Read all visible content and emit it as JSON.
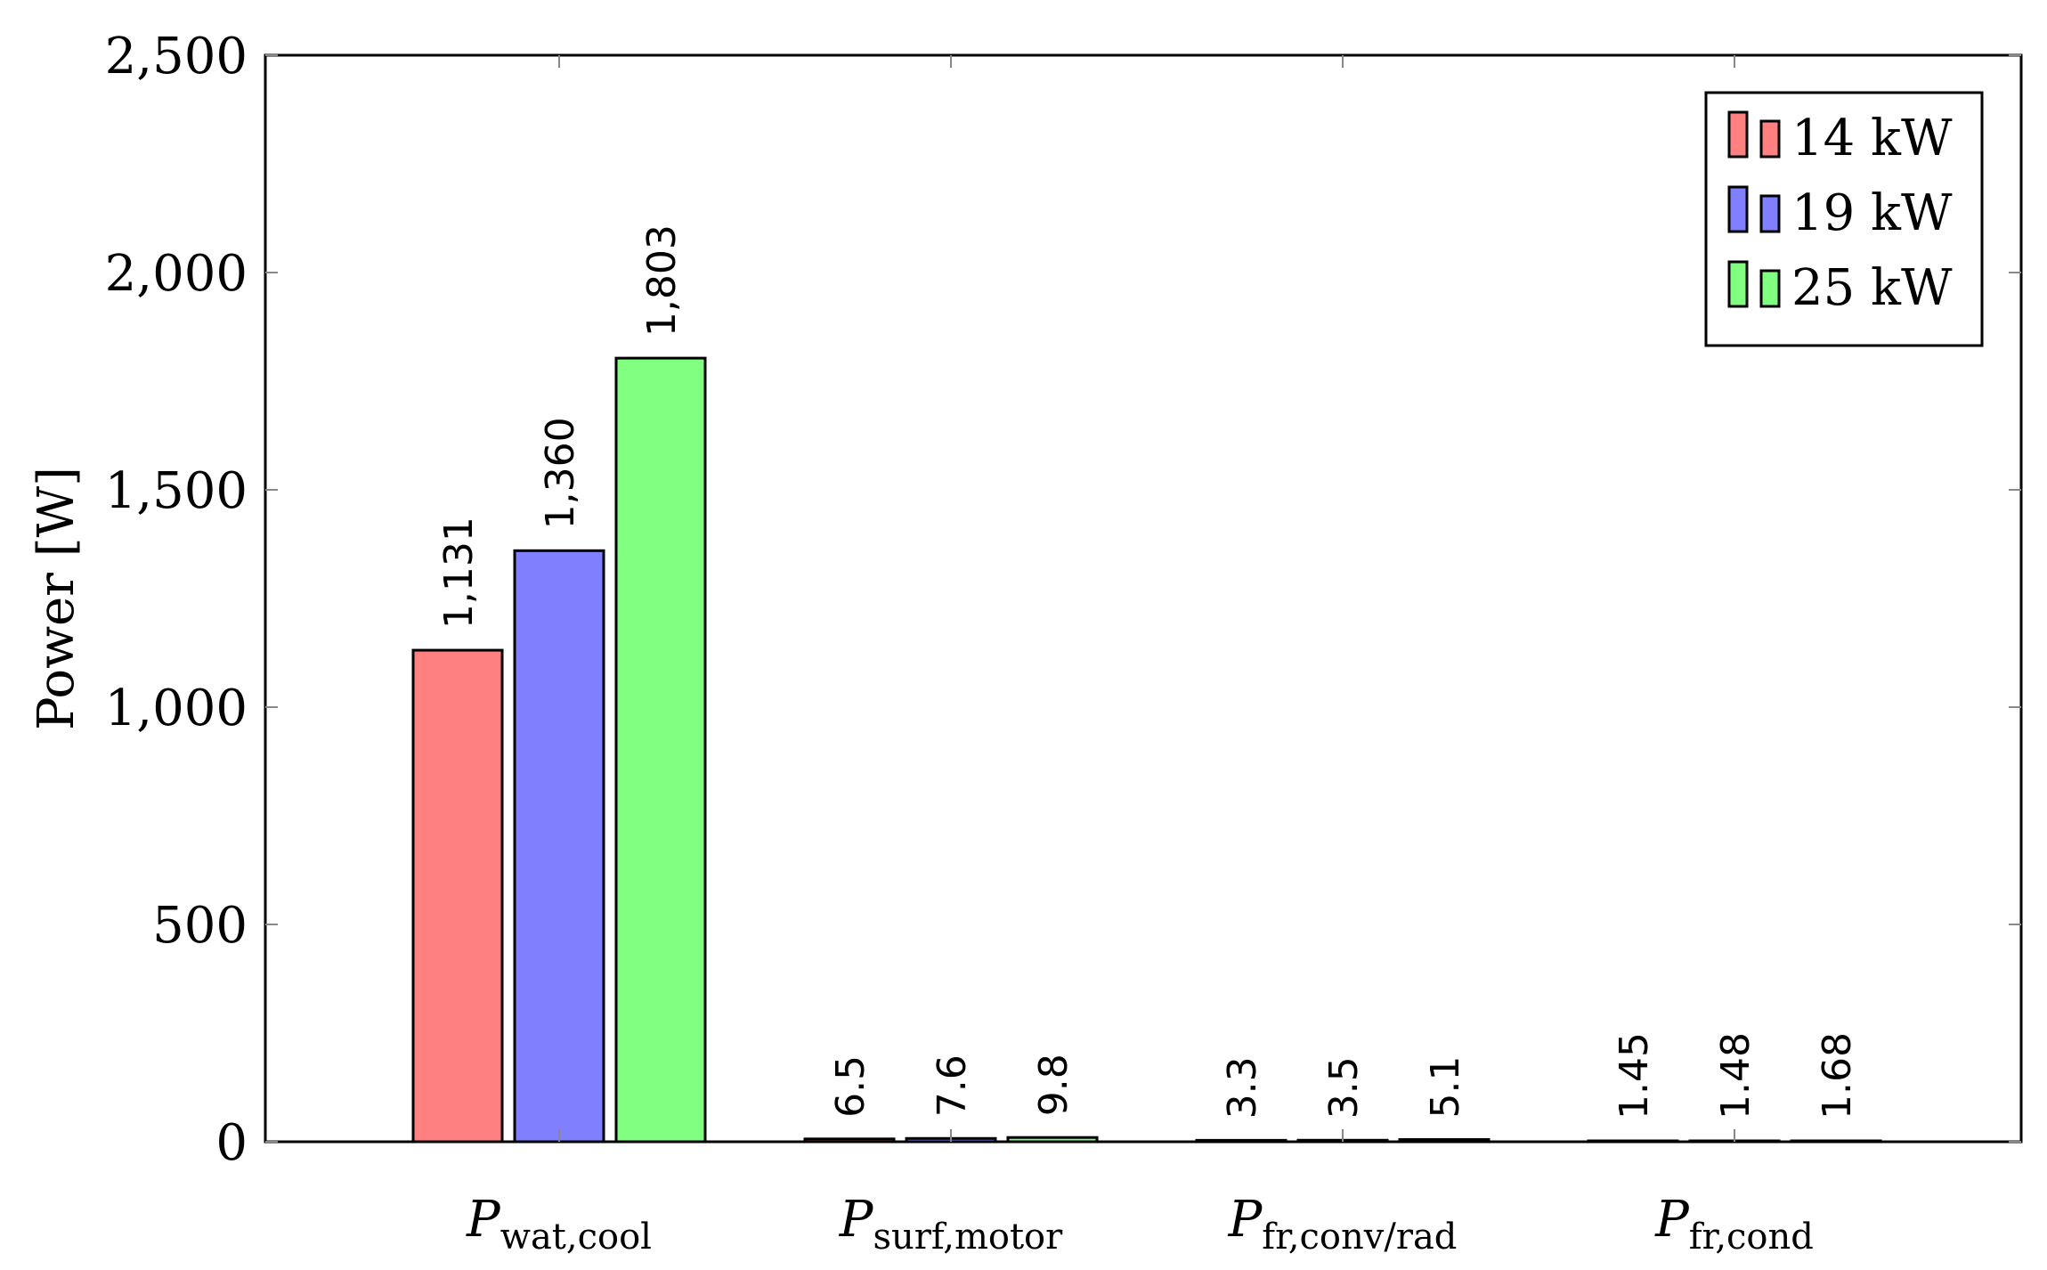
{
  "chart_data": {
    "type": "bar",
    "ylabel": "Power [W]",
    "ylim": [
      0,
      2500
    ],
    "yticks": [
      {
        "value": 0,
        "label": "0"
      },
      {
        "value": 500,
        "label": "500"
      },
      {
        "value": 1000,
        "label": "1,000"
      },
      {
        "value": 1500,
        "label": "1,500"
      },
      {
        "value": 2000,
        "label": "2,000"
      },
      {
        "value": 2500,
        "label": "2,500"
      }
    ],
    "categories": [
      {
        "main": "P",
        "sub": "wat,cool"
      },
      {
        "main": "P",
        "sub": "surf,motor"
      },
      {
        "main": "P",
        "sub": "fr,conv/rad"
      },
      {
        "main": "P",
        "sub": "fr,cond"
      }
    ],
    "series": [
      {
        "name": "14 kW",
        "color": "#ff8080",
        "values": [
          1131,
          6.5,
          3.3,
          1.45
        ],
        "labels": [
          "1,131",
          "6.5",
          "3.3",
          "1.45"
        ]
      },
      {
        "name": "19 kW",
        "color": "#8080ff",
        "values": [
          1360,
          7.6,
          3.5,
          1.48
        ],
        "labels": [
          "1,360",
          "7.6",
          "3.5",
          "1.48"
        ]
      },
      {
        "name": "25 kW",
        "color": "#80ff80",
        "values": [
          1803,
          9.8,
          5.1,
          1.68
        ],
        "labels": [
          "1,803",
          "9.8",
          "5.1",
          "1.68"
        ]
      }
    ],
    "legend_position": "top-right",
    "grid": false
  }
}
